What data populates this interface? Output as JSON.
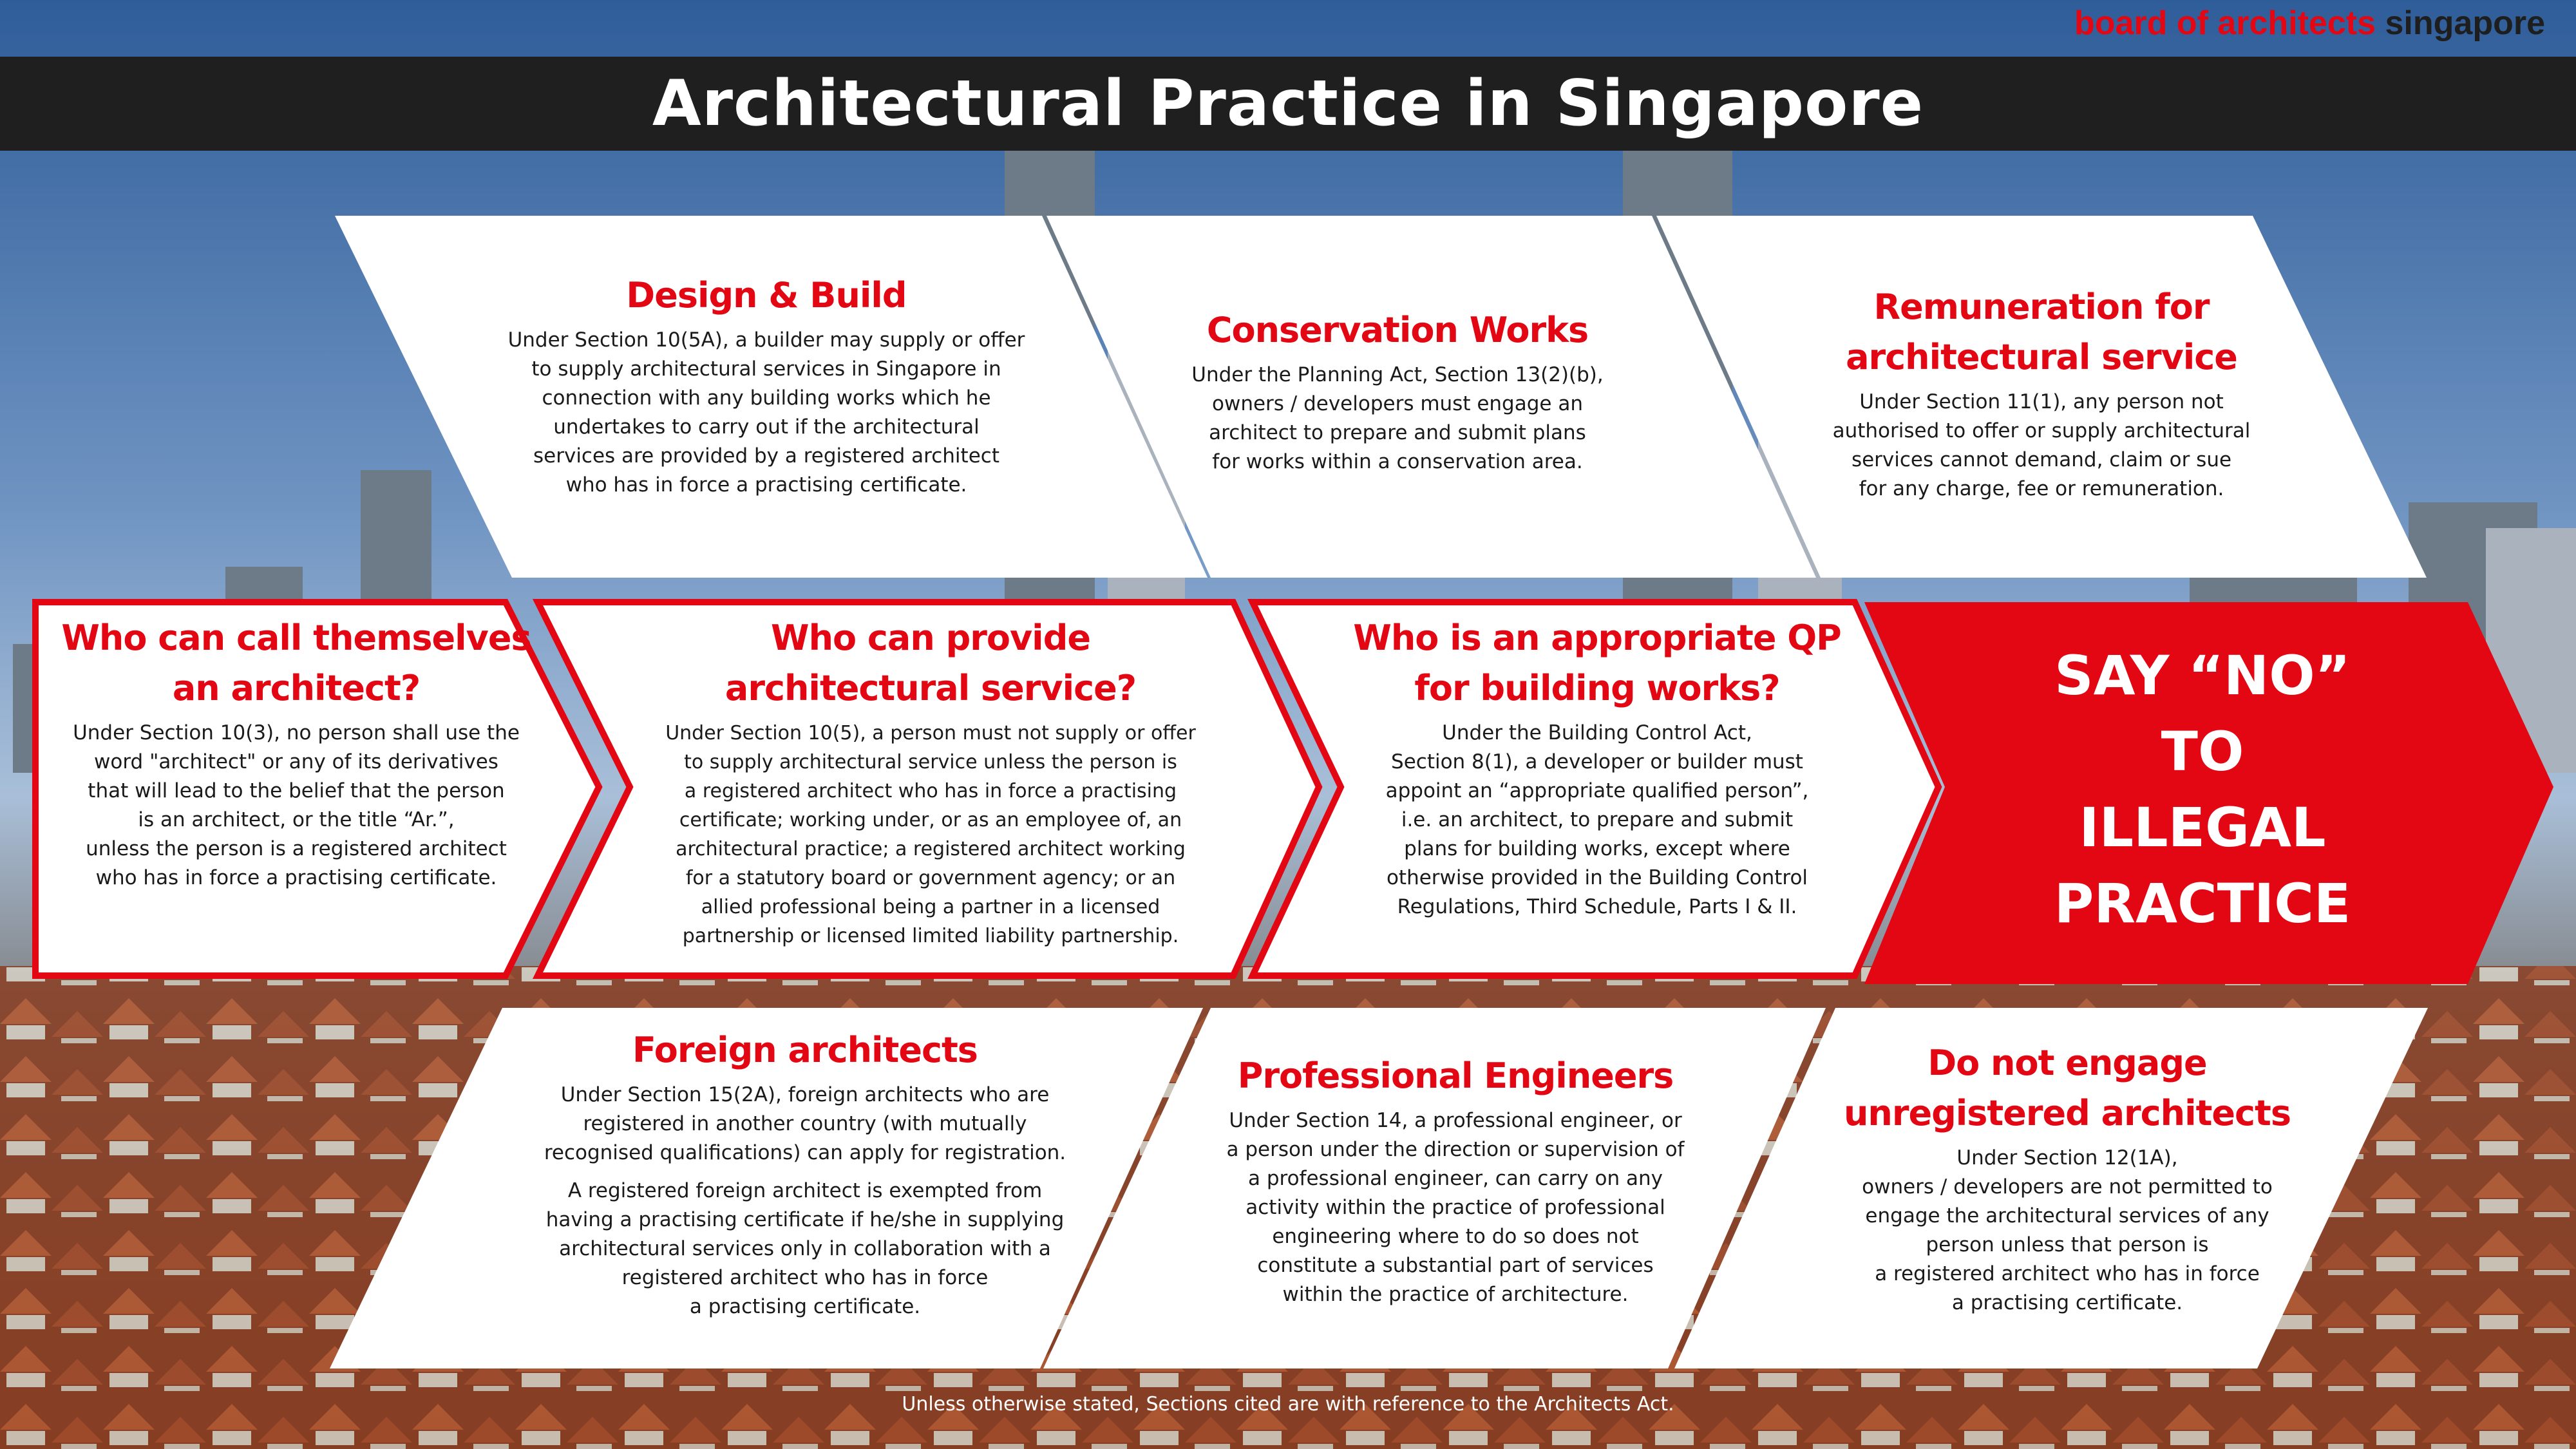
{
  "brand": {
    "part1": "board of architects",
    "part2": "singapore"
  },
  "title": "Architectural Practice in Singapore",
  "colors": {
    "accent": "#e30613",
    "title_bar": "#1f1f1f",
    "panel": "#ffffff"
  },
  "top_row": [
    {
      "heading_lines": [
        "Design & Build"
      ],
      "body_lines": [
        "Under Section 10(5A), a builder may supply or offer",
        "to supply architectural services in Singapore in",
        "connection with any building works which he",
        "undertakes to carry out if the architectural",
        "services are provided by a registered architect",
        "who has in force a practising certificate."
      ]
    },
    {
      "heading_lines": [
        "Conservation Works"
      ],
      "body_lines": [
        "Under the Planning Act, Section 13(2)(b),",
        "owners / developers must engage an",
        "architect to prepare and submit plans",
        "for works within a conservation area."
      ]
    },
    {
      "heading_lines": [
        "Remuneration for",
        "architectural service"
      ],
      "body_lines": [
        "Under Section 11(1), any person not",
        "authorised to offer or supply architectural",
        "services cannot demand, claim or sue",
        "for any charge, fee or remuneration."
      ]
    }
  ],
  "middle_row": [
    {
      "heading_lines": [
        "Who can call themselves",
        "an architect?"
      ],
      "body_lines": [
        "Under Section 10(3), no person shall use the",
        "word \"architect\" or any of its derivatives",
        "that will lead to the belief that the person",
        "is an architect, or the title “Ar.”,",
        "unless the person is a registered architect",
        "who has in force a practising certificate."
      ]
    },
    {
      "heading_lines": [
        "Who can provide",
        "architectural service?"
      ],
      "body_lines": [
        "Under Section 10(5),  a person must not supply or offer",
        "to supply architectural service unless the person is",
        "a registered architect who has in force a practising",
        "certificate; working under, or as an employee of, an",
        "architectural practice; a registered architect working",
        "for a statutory board or government agency; or an",
        "allied professional being a partner in a licensed",
        "partnership or licensed limited liability partnership."
      ]
    },
    {
      "heading_lines": [
        "Who is an appropriate QP",
        "for building works?"
      ],
      "body_lines": [
        "Under the Building Control Act,",
        "Section 8(1), a developer or builder must",
        "appoint an “appropriate qualified person”,",
        "i.e. an architect, to prepare and submit",
        "plans for building works, except where",
        "otherwise provided in the Building Control",
        "Regulations, Third Schedule, Parts I & II."
      ]
    }
  ],
  "callout_lines": [
    "SAY “NO”",
    "TO",
    "ILLEGAL",
    "PRACTICE"
  ],
  "bottom_row": [
    {
      "heading_lines": [
        "Foreign architects"
      ],
      "body_lines": [
        "Under Section 15(2A), foreign architects who are",
        "registered in another country (with mutually",
        "recognised qualifications) can apply for registration."
      ],
      "body2_lines": [
        "A registered foreign architect is exempted from",
        "having a practising certificate if he/she in supplying",
        "architectural services only in collaboration with a",
        "registered architect who has in force",
        "a practising certificate."
      ]
    },
    {
      "heading_lines": [
        "Professional Engineers"
      ],
      "body_lines": [
        "Under Section 14, a professional engineer, or",
        "a person under the direction or supervision of",
        "a professional engineer, can carry on any",
        "activity within the practice of professional",
        "engineering where to do so does not",
        "constitute a substantial part of services",
        "within the practice of architecture."
      ]
    },
    {
      "heading_lines": [
        "Do not engage",
        "unregistered architects"
      ],
      "body_lines": [
        "Under Section 12(1A),",
        "owners / developers are not permitted to",
        "engage the architectural services of any",
        "person unless that person is",
        "a registered architect who has in force",
        "a practising certificate."
      ]
    }
  ],
  "footnote": "Unless otherwise stated, Sections cited are with reference to the Architects Act."
}
